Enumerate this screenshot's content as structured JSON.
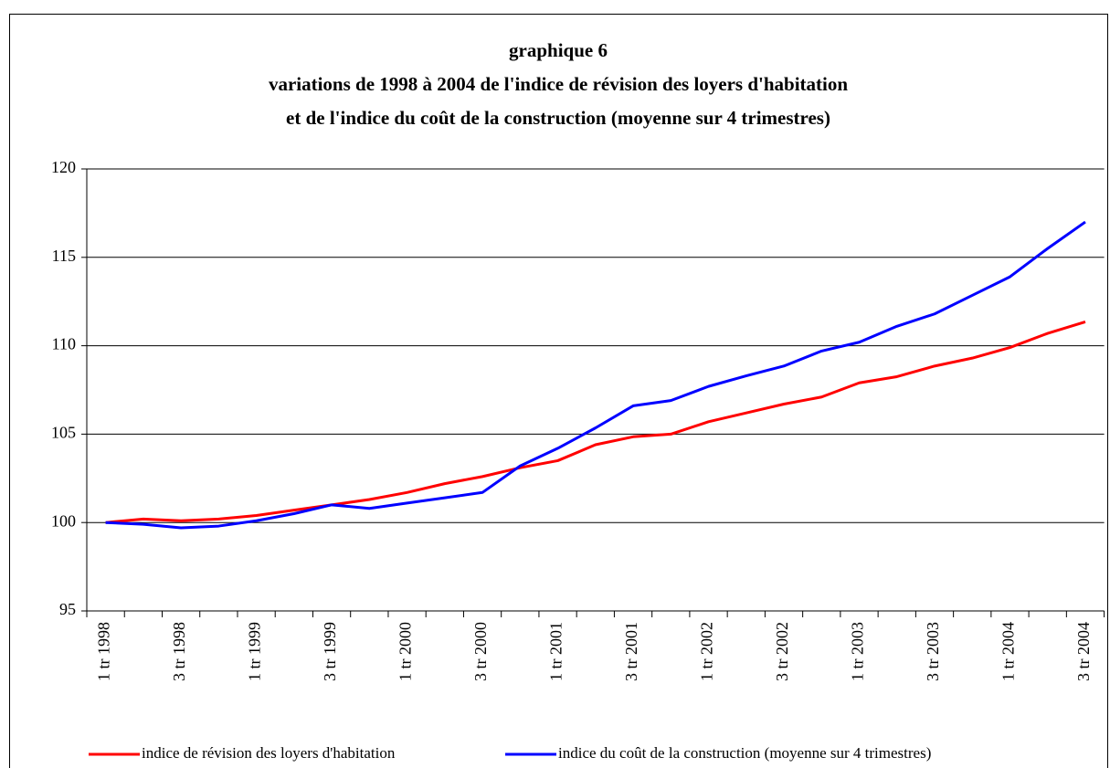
{
  "chart_data": {
    "type": "line",
    "title": [
      "graphique 6",
      "variations de 1998 à 2004 de l'indice de révision des loyers d'habitation",
      "et de l'indice du coût de la construction (moyenne sur 4 trimestres)"
    ],
    "categories": [
      "1 tr 1998",
      null,
      "3 tr 1998",
      null,
      "1 tr 1999",
      null,
      "3 tr 1999",
      null,
      "1 tr 2000",
      null,
      "3 tr 2000",
      null,
      "1 tr 2001",
      null,
      "3 tr 2001",
      null,
      "1 tr 2002",
      null,
      "3 tr 2002",
      null,
      "1 tr 2003",
      null,
      "3 tr 2003",
      null,
      "1 tr 2004",
      null,
      "3 tr 2004"
    ],
    "series": [
      {
        "name": "indice de révision des loyers d'habitation",
        "color": "#ff0000",
        "values": [
          100,
          100.2,
          100.1,
          100.2,
          100.4,
          100.7,
          101.0,
          101.3,
          101.7,
          102.2,
          102.6,
          103.1,
          103.5,
          104.4,
          104.85,
          105.0,
          105.7,
          106.2,
          106.7,
          107.1,
          107.9,
          108.25,
          108.85,
          109.3,
          109.9,
          110.7,
          111.35
        ]
      },
      {
        "name": "indice du coût de la construction (moyenne sur 4 trimestres)",
        "color": "#0000ff",
        "values": [
          100,
          99.9,
          99.7,
          99.8,
          100.1,
          100.5,
          101.0,
          100.8,
          101.1,
          101.4,
          101.7,
          103.2,
          104.2,
          105.35,
          106.6,
          106.9,
          107.7,
          108.3,
          108.85,
          109.7,
          110.2,
          111.1,
          111.8,
          112.85,
          113.9,
          115.5,
          117.0
        ]
      }
    ],
    "ylim": [
      95,
      120
    ],
    "yticks": [
      95,
      100,
      105,
      110,
      115,
      120
    ],
    "grid": true
  }
}
